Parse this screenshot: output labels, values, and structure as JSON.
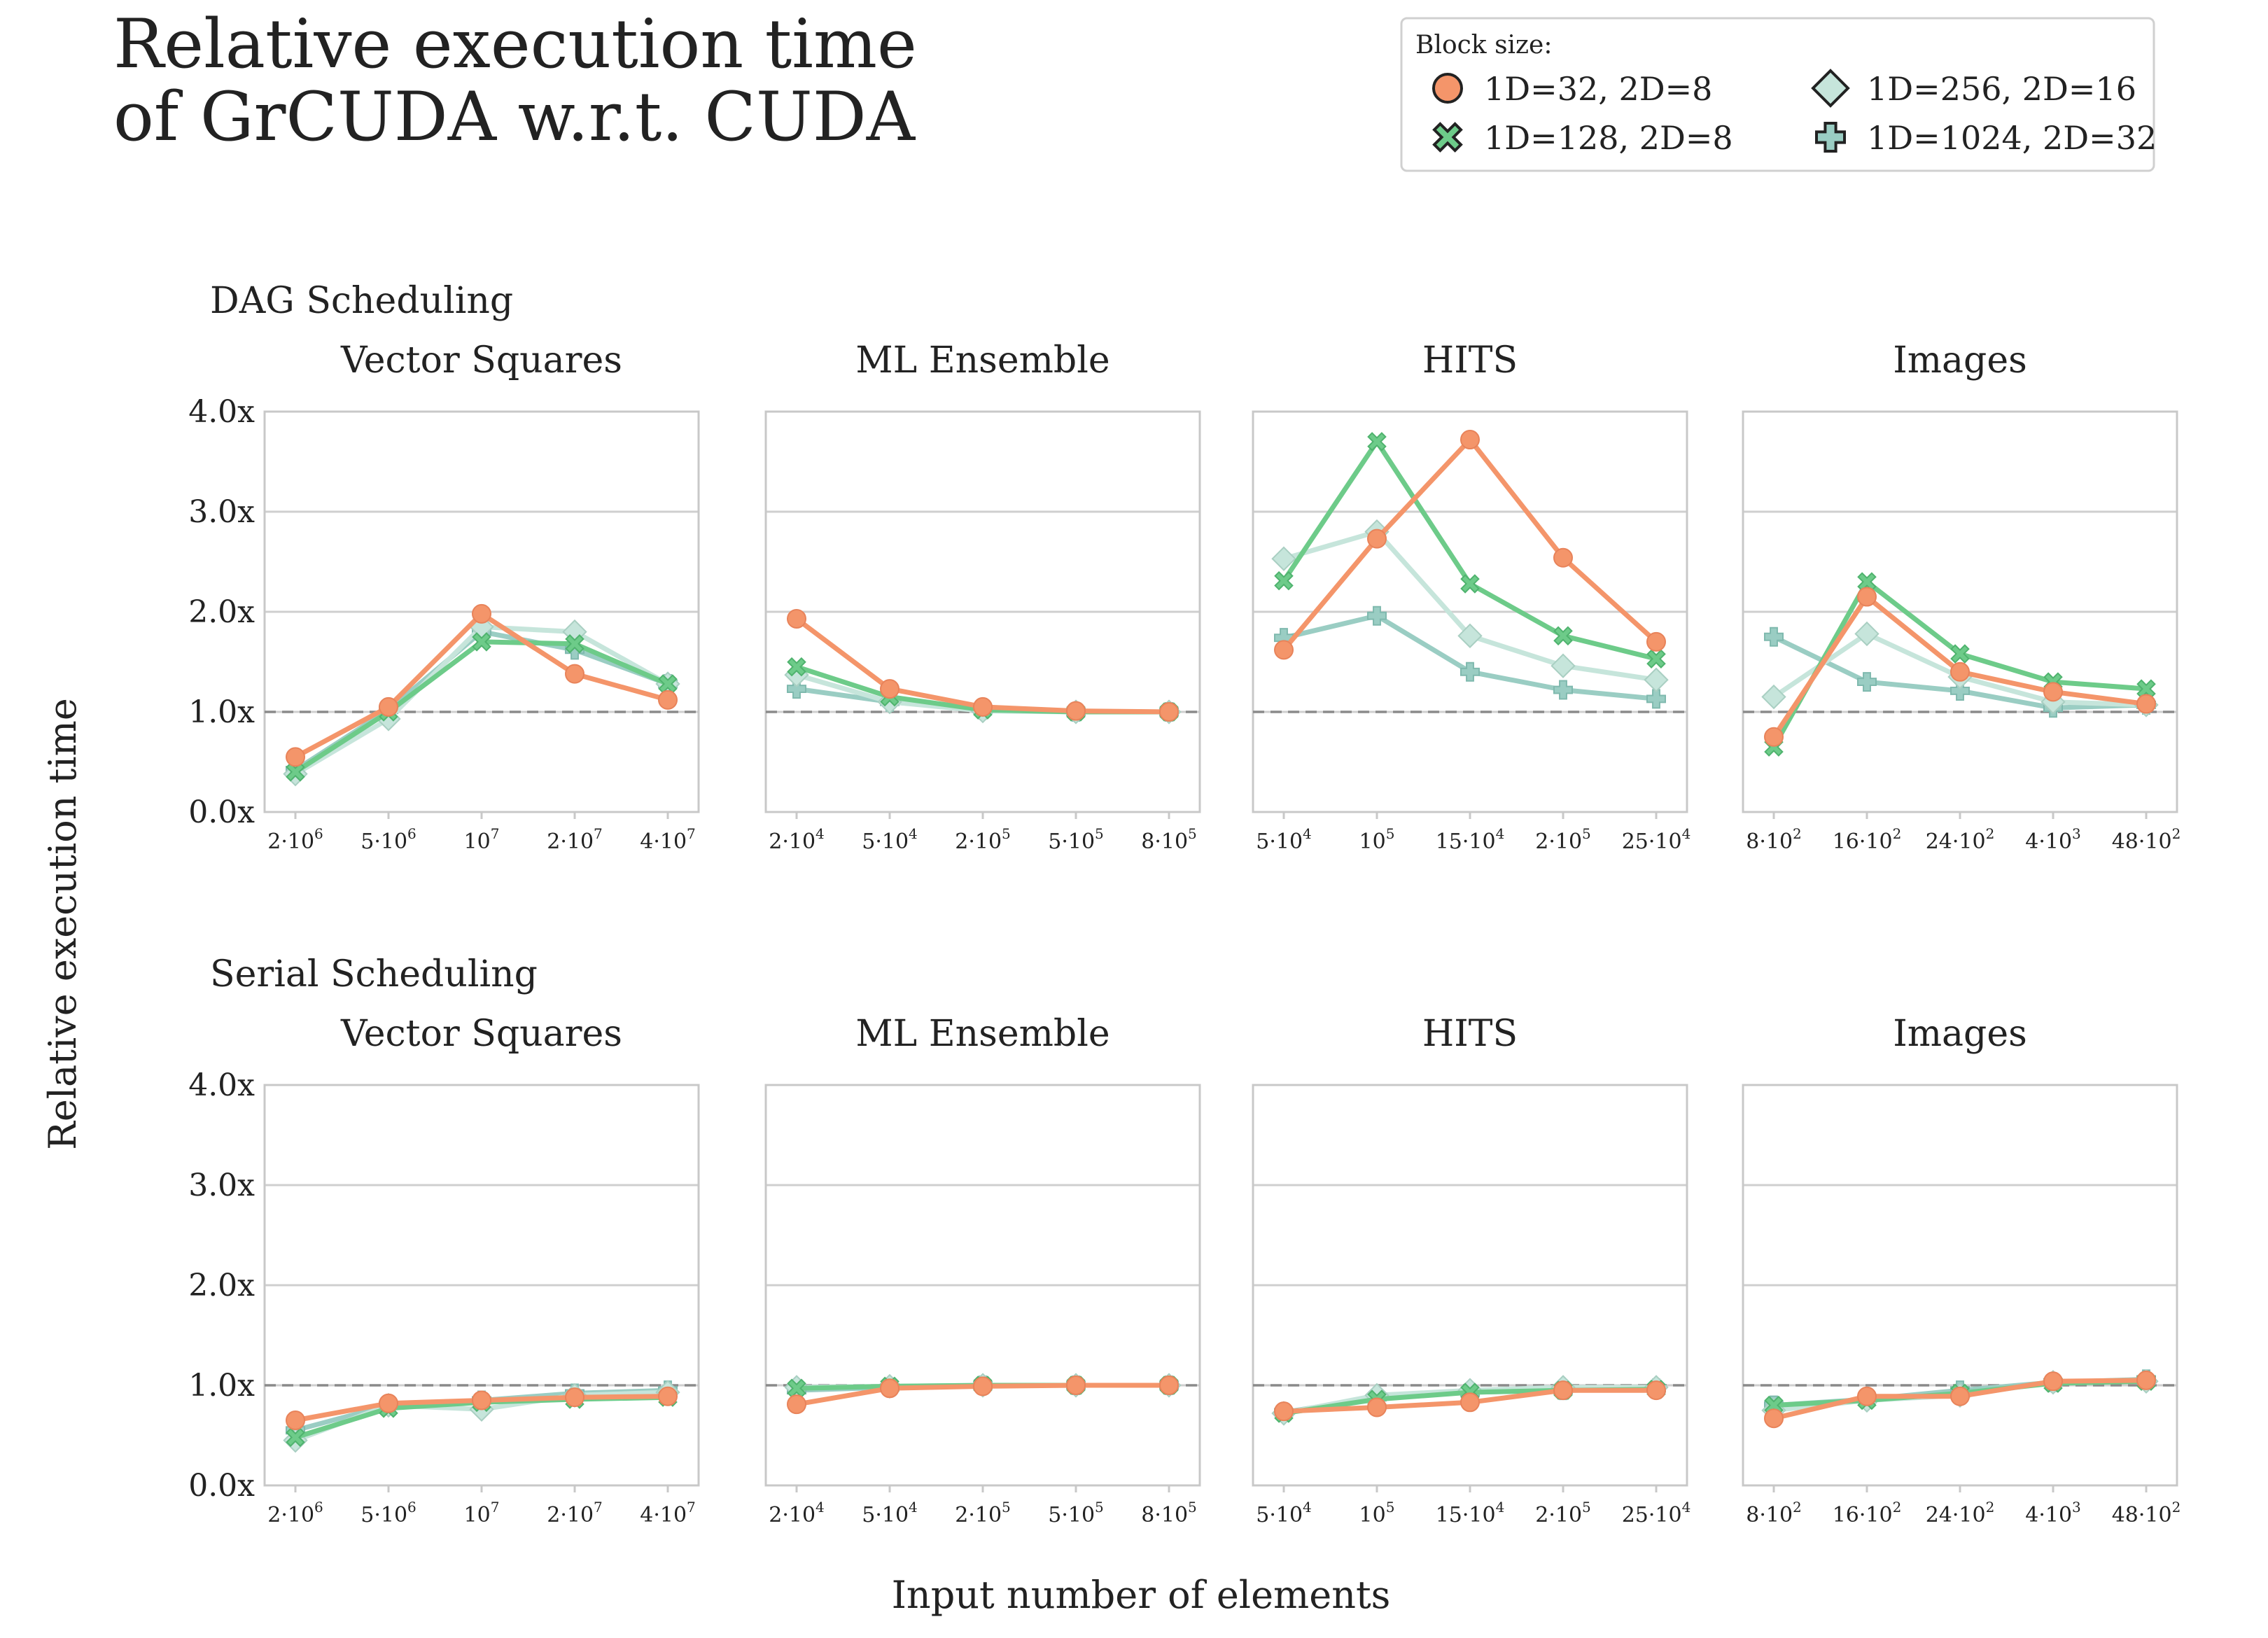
{
  "figure": {
    "title_lines": [
      "Relative execution time",
      "of GrCUDA w.r.t. CUDA"
    ],
    "ylabel": "Relative execution time",
    "xlabel": "Input number of elements"
  },
  "legend": {
    "title": "Block size:",
    "placement": "top-right",
    "entries": [
      {
        "label": "1D=32, 2D=8",
        "marker": "circle",
        "color": "#F4956A"
      },
      {
        "label": "1D=128, 2D=8",
        "marker": "x",
        "color": "#6DCB89"
      },
      {
        "label": "1D=256, 2D=16",
        "marker": "diamond",
        "color": "#C6E5DB"
      },
      {
        "label": "1D=1024, 2D=32",
        "marker": "plus",
        "color": "#9ACDC3"
      }
    ]
  },
  "chart_data": {
    "type": "line",
    "y_ticks": [
      "0.0x",
      "1.0x",
      "2.0x",
      "3.0x",
      "4.0x"
    ],
    "ylim": [
      0,
      4
    ],
    "reference_line": 1.0,
    "grid": "horizontal",
    "series_order": [
      "1D=32, 2D=8",
      "1D=128, 2D=8",
      "1D=256, 2D=16",
      "1D=1024, 2D=32"
    ],
    "rows": [
      {
        "title": "DAG Scheduling",
        "panels": [
          {
            "title": "Vector Squares",
            "x_ticks": [
              {
                "b": "2·10",
                "e": "6"
              },
              {
                "b": "5·10",
                "e": "6"
              },
              {
                "b": "10",
                "e": "7"
              },
              {
                "b": "2·10",
                "e": "7"
              },
              {
                "b": "4·10",
                "e": "7"
              }
            ],
            "values": [
              [
                0.55,
                1.05,
                1.98,
                1.38,
                1.12
              ],
              [
                0.4,
                1.0,
                1.7,
                1.68,
                1.28
              ],
              [
                0.38,
                0.93,
                1.85,
                1.8,
                1.28
              ],
              [
                0.42,
                1.02,
                1.8,
                1.62,
                1.28
              ]
            ]
          },
          {
            "title": "ML Ensemble",
            "x_ticks": [
              {
                "b": "2·10",
                "e": "4"
              },
              {
                "b": "5·10",
                "e": "4"
              },
              {
                "b": "2·10",
                "e": "5"
              },
              {
                "b": "5·10",
                "e": "5"
              },
              {
                "b": "8·10",
                "e": "5"
              }
            ],
            "values": [
              [
                1.93,
                1.23,
                1.05,
                1.01,
                1.0
              ],
              [
                1.45,
                1.15,
                1.02,
                1.0,
                1.0
              ],
              [
                1.37,
                1.1,
                1.01,
                1.0,
                1.0
              ],
              [
                1.23,
                1.1,
                1.02,
                1.0,
                1.0
              ]
            ]
          },
          {
            "title": "HITS",
            "x_ticks": [
              {
                "b": "5·10",
                "e": "4"
              },
              {
                "b": "10",
                "e": "5"
              },
              {
                "b": "15·10",
                "e": "4"
              },
              {
                "b": "2·10",
                "e": "5"
              },
              {
                "b": "25·10",
                "e": "4"
              }
            ],
            "values": [
              [
                1.62,
                2.73,
                3.72,
                2.54,
                1.7
              ],
              [
                2.31,
                3.7,
                2.28,
                1.76,
                1.53
              ],
              [
                2.53,
                2.8,
                1.76,
                1.46,
                1.32
              ],
              [
                1.74,
                1.96,
                1.4,
                1.22,
                1.13
              ]
            ]
          },
          {
            "title": "Images",
            "x_ticks": [
              {
                "b": "8·10",
                "e": "2"
              },
              {
                "b": "16·10",
                "e": "2"
              },
              {
                "b": "24·10",
                "e": "2"
              },
              {
                "b": "4·10",
                "e": "3"
              },
              {
                "b": "48·10",
                "e": "2"
              }
            ],
            "values": [
              [
                0.75,
                2.15,
                1.4,
                1.2,
                1.08
              ],
              [
                0.65,
                2.3,
                1.58,
                1.3,
                1.23
              ],
              [
                1.15,
                1.78,
                1.35,
                1.1,
                1.07
              ],
              [
                1.75,
                1.3,
                1.21,
                1.04,
                1.07
              ]
            ]
          }
        ]
      },
      {
        "title": "Serial Scheduling",
        "panels": [
          {
            "title": "Vector Squares",
            "x_ticks": [
              {
                "b": "2·10",
                "e": "6"
              },
              {
                "b": "5·10",
                "e": "6"
              },
              {
                "b": "10",
                "e": "7"
              },
              {
                "b": "2·10",
                "e": "7"
              },
              {
                "b": "4·10",
                "e": "7"
              }
            ],
            "values": [
              [
                0.65,
                0.82,
                0.85,
                0.88,
                0.89
              ],
              [
                0.48,
                0.77,
                0.83,
                0.86,
                0.88
              ],
              [
                0.45,
                0.8,
                0.76,
                0.9,
                0.93
              ],
              [
                0.55,
                0.8,
                0.85,
                0.92,
                0.95
              ]
            ]
          },
          {
            "title": "ML Ensemble",
            "x_ticks": [
              {
                "b": "2·10",
                "e": "4"
              },
              {
                "b": "5·10",
                "e": "4"
              },
              {
                "b": "2·10",
                "e": "5"
              },
              {
                "b": "5·10",
                "e": "5"
              },
              {
                "b": "8·10",
                "e": "5"
              }
            ],
            "values": [
              [
                0.81,
                0.97,
                0.99,
                1.0,
                1.0
              ],
              [
                0.97,
                0.99,
                1.0,
                1.0,
                1.0
              ],
              [
                0.98,
                0.99,
                1.0,
                1.0,
                1.0
              ],
              [
                0.95,
                0.98,
                1.0,
                1.0,
                1.0
              ]
            ]
          },
          {
            "title": "HITS",
            "x_ticks": [
              {
                "b": "5·10",
                "e": "4"
              },
              {
                "b": "10",
                "e": "5"
              },
              {
                "b": "15·10",
                "e": "4"
              },
              {
                "b": "2·10",
                "e": "5"
              },
              {
                "b": "25·10",
                "e": "4"
              }
            ],
            "values": [
              [
                0.74,
                0.78,
                0.83,
                0.95,
                0.95
              ],
              [
                0.72,
                0.86,
                0.93,
                0.95,
                0.96
              ],
              [
                0.72,
                0.9,
                0.95,
                0.98,
                0.98
              ],
              [
                0.73,
                0.88,
                0.93,
                0.95,
                0.97
              ]
            ]
          },
          {
            "title": "Images",
            "x_ticks": [
              {
                "b": "8·10",
                "e": "2"
              },
              {
                "b": "16·10",
                "e": "2"
              },
              {
                "b": "24·10",
                "e": "2"
              },
              {
                "b": "4·10",
                "e": "3"
              },
              {
                "b": "48·10",
                "e": "2"
              }
            ],
            "values": [
              [
                0.67,
                0.89,
                0.89,
                1.04,
                1.05
              ],
              [
                0.8,
                0.85,
                0.92,
                1.02,
                1.04
              ],
              [
                0.75,
                0.85,
                0.9,
                1.03,
                1.04
              ],
              [
                0.8,
                0.86,
                0.95,
                1.03,
                1.06
              ]
            ]
          }
        ]
      }
    ]
  }
}
